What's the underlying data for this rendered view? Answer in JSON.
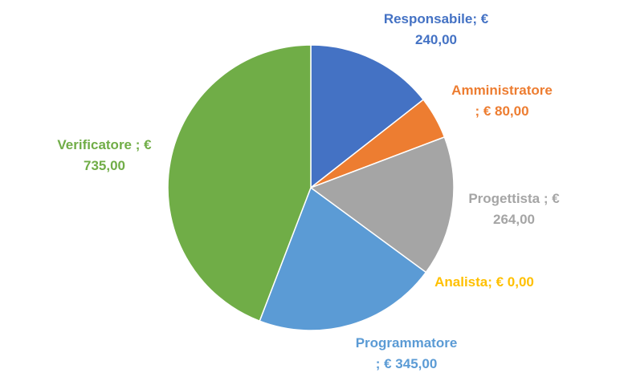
{
  "chart_data": {
    "type": "pie",
    "title": "",
    "categories": [
      "Responsabile",
      "Amministratore",
      "Progettista",
      "Analista",
      "Programmatore",
      "Verificatore"
    ],
    "values": [
      240,
      80,
      264,
      0,
      345,
      735
    ],
    "colors": [
      "#4472C4",
      "#ED7D31",
      "#A5A5A5",
      "#FFC000",
      "#5B9BD5",
      "#70AD47"
    ],
    "data_labels": [
      [
        "Responsabile; €",
        "240,00"
      ],
      [
        "Amministratore",
        "; € 80,00"
      ],
      [
        "Progettista ; €",
        "264,00"
      ],
      [
        "Analista; € 0,00"
      ],
      [
        "Programmatore",
        "; € 345,00"
      ],
      [
        "Verificatore ; €",
        "735,00"
      ]
    ],
    "start_angle": "12 o'clock",
    "direction": "clockwise",
    "legend": "none"
  }
}
